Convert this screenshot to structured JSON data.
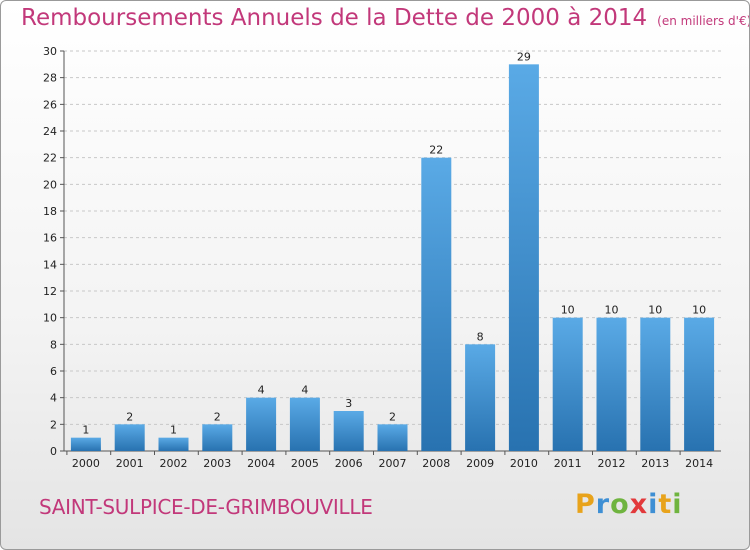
{
  "title": "Remboursements Annuels de la Dette de 2000 à 2014",
  "subtitle": "(en milliers d'€)",
  "commune": "SAINT-SULPICE-DE-GRIMBOUVILLE",
  "brand": {
    "letters": [
      "P",
      "r",
      "o",
      "x",
      "i",
      "t",
      "i"
    ],
    "colors": [
      "#e8a31b",
      "#3e8fd4",
      "#6fb43f",
      "#e2393b",
      "#3e8fd4",
      "#e8a31b",
      "#6fb43f"
    ]
  },
  "colors": {
    "bar_top": "#5aaae6",
    "bar_bottom": "#2872b0",
    "title": "#c2387a",
    "grid": "#c8c8c8"
  },
  "chart_data": {
    "type": "bar",
    "title": "Remboursements Annuels de la Dette de 2000 à 2014",
    "subtitle": "(en milliers d'€)",
    "xlabel": "",
    "ylabel": "",
    "categories": [
      "2000",
      "2001",
      "2002",
      "2003",
      "2004",
      "2005",
      "2006",
      "2007",
      "2008",
      "2009",
      "2010",
      "2011",
      "2012",
      "2013",
      "2014"
    ],
    "values": [
      1,
      2,
      1,
      2,
      4,
      4,
      3,
      2,
      22,
      8,
      29,
      10,
      10,
      10,
      10
    ],
    "ylim": [
      0,
      30
    ],
    "yticks": [
      0,
      2,
      4,
      6,
      8,
      10,
      12,
      14,
      16,
      18,
      20,
      22,
      24,
      26,
      28,
      30
    ],
    "grid": true
  }
}
